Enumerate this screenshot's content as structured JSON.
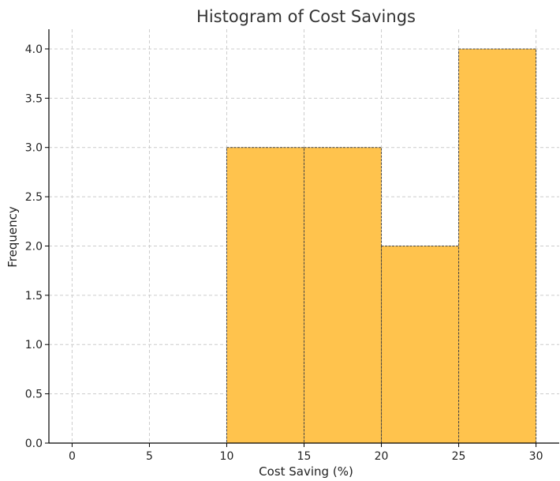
{
  "chart_data": {
    "type": "bar",
    "title": "Histogram of Cost Savings",
    "xlabel": "Cost Saving (%)",
    "ylabel": "Frequency",
    "bins": [
      {
        "start": 10,
        "end": 15,
        "count": 3
      },
      {
        "start": 15,
        "end": 20,
        "count": 3
      },
      {
        "start": 20,
        "end": 25,
        "count": 2
      },
      {
        "start": 25,
        "end": 30,
        "count": 4
      }
    ],
    "xlim": [
      -1.5,
      31.5
    ],
    "ylim": [
      0,
      4.2
    ],
    "xticks": [
      0,
      5,
      10,
      15,
      20,
      25,
      30
    ],
    "yticks": [
      0.0,
      0.5,
      1.0,
      1.5,
      2.0,
      2.5,
      3.0,
      3.5,
      4.0
    ],
    "xtick_labels": [
      "0",
      "5",
      "10",
      "15",
      "20",
      "25",
      "30"
    ],
    "ytick_labels": [
      "0.0",
      "0.5",
      "1.0",
      "1.5",
      "2.0",
      "2.5",
      "3.0",
      "3.5",
      "4.0"
    ],
    "grid": true,
    "bar_color": "#FFC34D",
    "edge_color": "#444444"
  }
}
